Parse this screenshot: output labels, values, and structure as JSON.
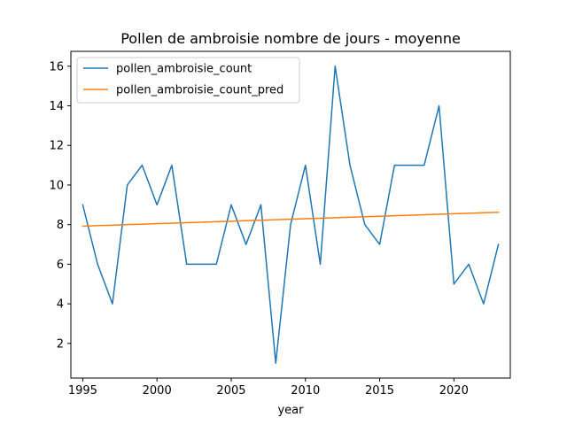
{
  "chart_data": {
    "type": "line",
    "title": "Pollen de ambroisie nombre de jours - moyenne",
    "xlabel": "year",
    "ylabel": "",
    "x": [
      1995,
      1996,
      1997,
      1998,
      1999,
      2000,
      2001,
      2002,
      2003,
      2004,
      2005,
      2006,
      2007,
      2008,
      2009,
      2010,
      2011,
      2012,
      2013,
      2014,
      2015,
      2016,
      2017,
      2018,
      2019,
      2020,
      2021,
      2022,
      2023
    ],
    "series": [
      {
        "name": "pollen_ambroisie_count",
        "color": "#1f77b4",
        "values": [
          9,
          6,
          4,
          10,
          11,
          9,
          11,
          6,
          6,
          6,
          9,
          7,
          9,
          1,
          8,
          11,
          6,
          16,
          11,
          8,
          7,
          11,
          11,
          11,
          14,
          5,
          6,
          4,
          7
        ]
      },
      {
        "name": "pollen_ambroisie_count_pred",
        "color": "#ff7f0e",
        "values": [
          7.92,
          7.95,
          7.97,
          8.0,
          8.02,
          8.05,
          8.07,
          8.1,
          8.12,
          8.15,
          8.17,
          8.2,
          8.22,
          8.25,
          8.27,
          8.3,
          8.32,
          8.35,
          8.37,
          8.4,
          8.42,
          8.45,
          8.47,
          8.5,
          8.52,
          8.55,
          8.57,
          8.6,
          8.62
        ]
      }
    ],
    "xlim": [
      1994.2,
      2023.8
    ],
    "ylim": [
      0.25,
      16.75
    ],
    "xticks": [
      1995,
      2000,
      2005,
      2010,
      2015,
      2020
    ],
    "yticks": [
      2,
      4,
      6,
      8,
      10,
      12,
      14,
      16
    ],
    "grid": false,
    "legend_position": "top-left"
  }
}
